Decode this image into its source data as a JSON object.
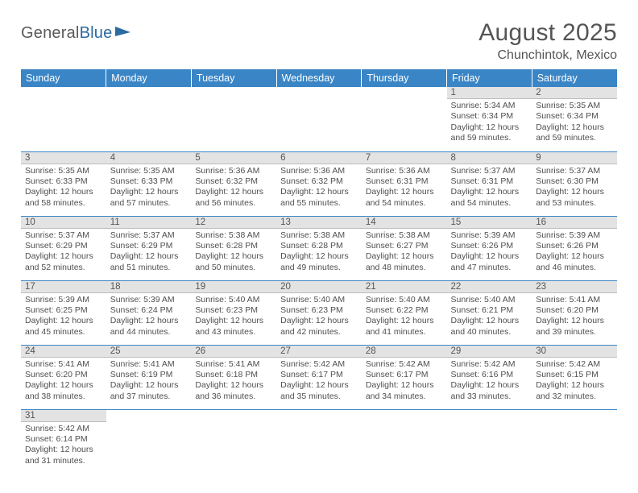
{
  "logo": {
    "text1": "General",
    "text2": "Blue"
  },
  "header": {
    "title": "August 2025",
    "location": "Chunchintok, Mexico"
  },
  "style": {
    "header_bg": "#3a85c6",
    "header_fg": "#ffffff",
    "daynum_bg": "#e3e3e3",
    "row_border": "#3a85c6",
    "text_color": "#4f4f4f",
    "title_fontsize_pt": 22,
    "location_fontsize_pt": 12,
    "dayheader_fontsize_pt": 9,
    "cell_fontsize_pt": 8
  },
  "day_headers": [
    "Sunday",
    "Monday",
    "Tuesday",
    "Wednesday",
    "Thursday",
    "Friday",
    "Saturday"
  ],
  "weeks": [
    [
      null,
      null,
      null,
      null,
      null,
      {
        "n": "1",
        "sr": "Sunrise: 5:34 AM",
        "ss": "Sunset: 6:34 PM",
        "dl": "Daylight: 12 hours and 59 minutes."
      },
      {
        "n": "2",
        "sr": "Sunrise: 5:35 AM",
        "ss": "Sunset: 6:34 PM",
        "dl": "Daylight: 12 hours and 59 minutes."
      }
    ],
    [
      {
        "n": "3",
        "sr": "Sunrise: 5:35 AM",
        "ss": "Sunset: 6:33 PM",
        "dl": "Daylight: 12 hours and 58 minutes."
      },
      {
        "n": "4",
        "sr": "Sunrise: 5:35 AM",
        "ss": "Sunset: 6:33 PM",
        "dl": "Daylight: 12 hours and 57 minutes."
      },
      {
        "n": "5",
        "sr": "Sunrise: 5:36 AM",
        "ss": "Sunset: 6:32 PM",
        "dl": "Daylight: 12 hours and 56 minutes."
      },
      {
        "n": "6",
        "sr": "Sunrise: 5:36 AM",
        "ss": "Sunset: 6:32 PM",
        "dl": "Daylight: 12 hours and 55 minutes."
      },
      {
        "n": "7",
        "sr": "Sunrise: 5:36 AM",
        "ss": "Sunset: 6:31 PM",
        "dl": "Daylight: 12 hours and 54 minutes."
      },
      {
        "n": "8",
        "sr": "Sunrise: 5:37 AM",
        "ss": "Sunset: 6:31 PM",
        "dl": "Daylight: 12 hours and 54 minutes."
      },
      {
        "n": "9",
        "sr": "Sunrise: 5:37 AM",
        "ss": "Sunset: 6:30 PM",
        "dl": "Daylight: 12 hours and 53 minutes."
      }
    ],
    [
      {
        "n": "10",
        "sr": "Sunrise: 5:37 AM",
        "ss": "Sunset: 6:29 PM",
        "dl": "Daylight: 12 hours and 52 minutes."
      },
      {
        "n": "11",
        "sr": "Sunrise: 5:37 AM",
        "ss": "Sunset: 6:29 PM",
        "dl": "Daylight: 12 hours and 51 minutes."
      },
      {
        "n": "12",
        "sr": "Sunrise: 5:38 AM",
        "ss": "Sunset: 6:28 PM",
        "dl": "Daylight: 12 hours and 50 minutes."
      },
      {
        "n": "13",
        "sr": "Sunrise: 5:38 AM",
        "ss": "Sunset: 6:28 PM",
        "dl": "Daylight: 12 hours and 49 minutes."
      },
      {
        "n": "14",
        "sr": "Sunrise: 5:38 AM",
        "ss": "Sunset: 6:27 PM",
        "dl": "Daylight: 12 hours and 48 minutes."
      },
      {
        "n": "15",
        "sr": "Sunrise: 5:39 AM",
        "ss": "Sunset: 6:26 PM",
        "dl": "Daylight: 12 hours and 47 minutes."
      },
      {
        "n": "16",
        "sr": "Sunrise: 5:39 AM",
        "ss": "Sunset: 6:26 PM",
        "dl": "Daylight: 12 hours and 46 minutes."
      }
    ],
    [
      {
        "n": "17",
        "sr": "Sunrise: 5:39 AM",
        "ss": "Sunset: 6:25 PM",
        "dl": "Daylight: 12 hours and 45 minutes."
      },
      {
        "n": "18",
        "sr": "Sunrise: 5:39 AM",
        "ss": "Sunset: 6:24 PM",
        "dl": "Daylight: 12 hours and 44 minutes."
      },
      {
        "n": "19",
        "sr": "Sunrise: 5:40 AM",
        "ss": "Sunset: 6:23 PM",
        "dl": "Daylight: 12 hours and 43 minutes."
      },
      {
        "n": "20",
        "sr": "Sunrise: 5:40 AM",
        "ss": "Sunset: 6:23 PM",
        "dl": "Daylight: 12 hours and 42 minutes."
      },
      {
        "n": "21",
        "sr": "Sunrise: 5:40 AM",
        "ss": "Sunset: 6:22 PM",
        "dl": "Daylight: 12 hours and 41 minutes."
      },
      {
        "n": "22",
        "sr": "Sunrise: 5:40 AM",
        "ss": "Sunset: 6:21 PM",
        "dl": "Daylight: 12 hours and 40 minutes."
      },
      {
        "n": "23",
        "sr": "Sunrise: 5:41 AM",
        "ss": "Sunset: 6:20 PM",
        "dl": "Daylight: 12 hours and 39 minutes."
      }
    ],
    [
      {
        "n": "24",
        "sr": "Sunrise: 5:41 AM",
        "ss": "Sunset: 6:20 PM",
        "dl": "Daylight: 12 hours and 38 minutes."
      },
      {
        "n": "25",
        "sr": "Sunrise: 5:41 AM",
        "ss": "Sunset: 6:19 PM",
        "dl": "Daylight: 12 hours and 37 minutes."
      },
      {
        "n": "26",
        "sr": "Sunrise: 5:41 AM",
        "ss": "Sunset: 6:18 PM",
        "dl": "Daylight: 12 hours and 36 minutes."
      },
      {
        "n": "27",
        "sr": "Sunrise: 5:42 AM",
        "ss": "Sunset: 6:17 PM",
        "dl": "Daylight: 12 hours and 35 minutes."
      },
      {
        "n": "28",
        "sr": "Sunrise: 5:42 AM",
        "ss": "Sunset: 6:17 PM",
        "dl": "Daylight: 12 hours and 34 minutes."
      },
      {
        "n": "29",
        "sr": "Sunrise: 5:42 AM",
        "ss": "Sunset: 6:16 PM",
        "dl": "Daylight: 12 hours and 33 minutes."
      },
      {
        "n": "30",
        "sr": "Sunrise: 5:42 AM",
        "ss": "Sunset: 6:15 PM",
        "dl": "Daylight: 12 hours and 32 minutes."
      }
    ],
    [
      {
        "n": "31",
        "sr": "Sunrise: 5:42 AM",
        "ss": "Sunset: 6:14 PM",
        "dl": "Daylight: 12 hours and 31 minutes."
      },
      null,
      null,
      null,
      null,
      null,
      null
    ]
  ]
}
